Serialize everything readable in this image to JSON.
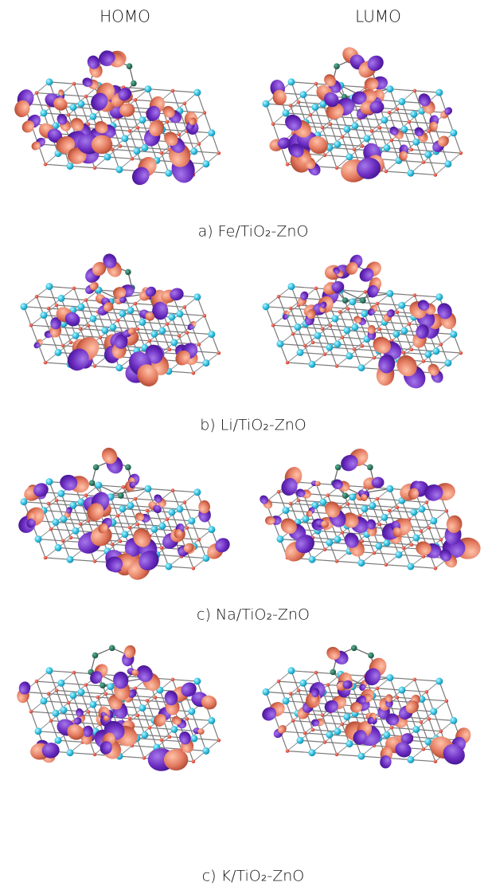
{
  "header": {
    "left": "HOMO",
    "right": "LUMO"
  },
  "panels": [
    {
      "caption": "a) Fe/TiO₂-ZnO"
    },
    {
      "caption": "b) Li/TiO₂-ZnO"
    },
    {
      "caption": "c) Na/TiO₂-ZnO"
    },
    {
      "caption": "c) K/TiO₂-ZnO"
    }
  ]
}
